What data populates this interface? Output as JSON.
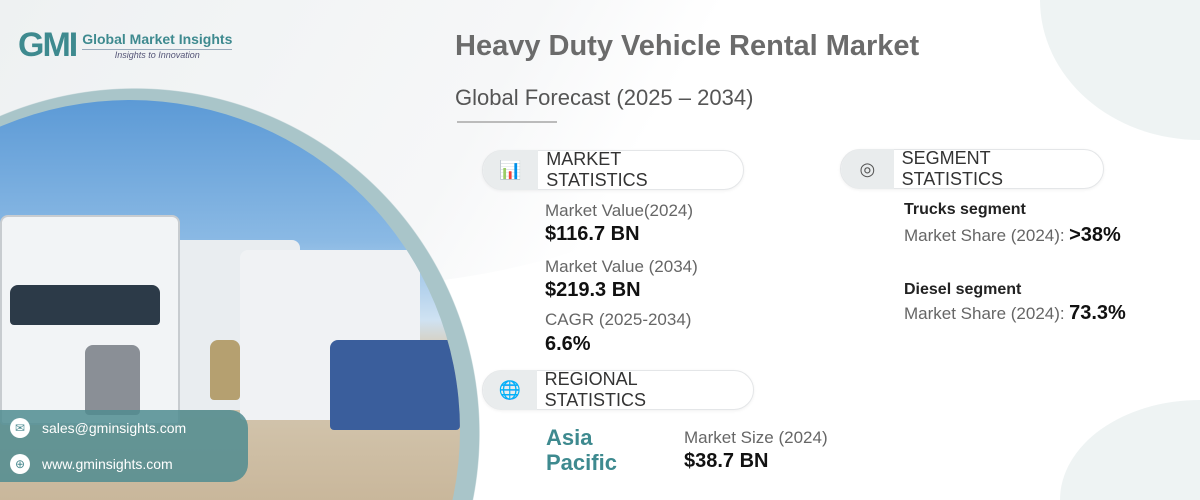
{
  "logo": {
    "name": "Global Market Insights",
    "tagline": "Insights to Innovation",
    "mark": "GMI"
  },
  "header": {
    "title": "Heavy Duty Vehicle Rental Market",
    "subtitle": "Global Forecast (2025 – 2034)"
  },
  "market_statistics": {
    "label": "MARKET STATISTICS",
    "items": [
      {
        "key": "Market Value(2024)",
        "value": "$116.7 BN"
      },
      {
        "key": "Market Value (2034)",
        "value": "$219.3 BN"
      },
      {
        "key": "CAGR (2025-2034)",
        "value": "6.6%"
      }
    ]
  },
  "segment_statistics": {
    "label": "SEGMENT STATISTICS",
    "items": [
      {
        "name": "Trucks segment",
        "key": "Market Share (2024):",
        "value": ">38%"
      },
      {
        "name": "Diesel segment",
        "key": "Market Share (2024):",
        "value": "73.3%"
      }
    ]
  },
  "regional_statistics": {
    "label": "REGIONAL STATISTICS",
    "region_line1": "Asia",
    "region_line2": "Pacific",
    "key": "Market Size (2024)",
    "value": "$38.7 BN"
  },
  "contact": {
    "email": "sales@gminsights.com",
    "website": "www.gminsights.com"
  },
  "colors": {
    "accent": "#3e8a8f",
    "ring": "#a9c5c9"
  }
}
